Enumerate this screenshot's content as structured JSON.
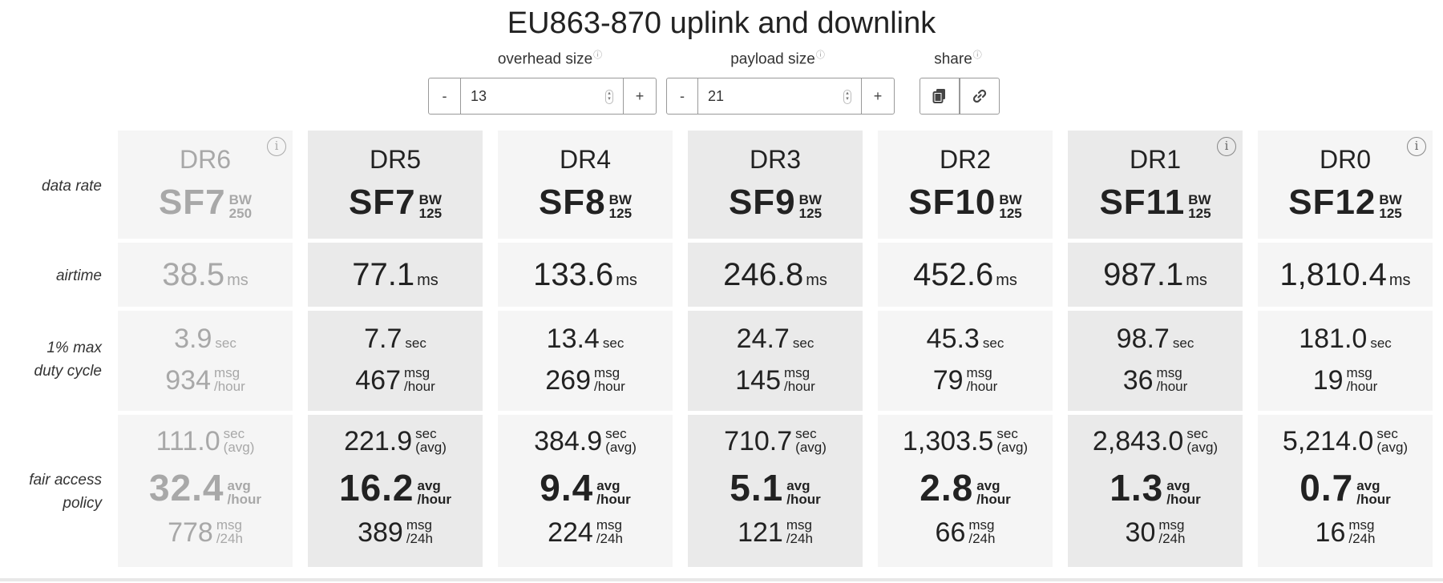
{
  "title": "EU863-870 uplink and downlink",
  "controls": {
    "overhead": {
      "label": "overhead size",
      "info": "ⓘ",
      "minus": "-",
      "plus": "+",
      "value": "13"
    },
    "payload": {
      "label": "payload size",
      "info": "ⓘ",
      "minus": "-",
      "plus": "+",
      "value": "21"
    },
    "share": {
      "label": "share",
      "info": "ⓘ",
      "copy_icon": "copy-icon",
      "link_icon": "link-icon"
    }
  },
  "row_labels": {
    "data_rate": "data rate",
    "airtime": "airtime",
    "duty_cycle_1": "1% max",
    "duty_cycle_2": "duty cycle",
    "fair_access_1": "fair access",
    "fair_access_2": "policy"
  },
  "units": {
    "bw": "BW",
    "ms": "ms",
    "sec": "sec",
    "msg": "msg",
    "per_hour": "/hour",
    "per_24h": "/24h",
    "avg": "avg",
    "avg_paren": "(avg)",
    "info_glyph": "i"
  },
  "columns": [
    {
      "dr": "DR6",
      "sf": "SF7",
      "bw": "250",
      "airtime": "38.5",
      "duty_sec": "3.9",
      "duty_msg": "934",
      "fair_sec": "111.0",
      "fair_avg": "32.4",
      "fair_msg": "778",
      "dim": true,
      "info": true
    },
    {
      "dr": "DR5",
      "sf": "SF7",
      "bw": "125",
      "airtime": "77.1",
      "duty_sec": "7.7",
      "duty_msg": "467",
      "fair_sec": "221.9",
      "fair_avg": "16.2",
      "fair_msg": "389",
      "dim": false,
      "info": false
    },
    {
      "dr": "DR4",
      "sf": "SF8",
      "bw": "125",
      "airtime": "133.6",
      "duty_sec": "13.4",
      "duty_msg": "269",
      "fair_sec": "384.9",
      "fair_avg": "9.4",
      "fair_msg": "224",
      "dim": false,
      "info": false
    },
    {
      "dr": "DR3",
      "sf": "SF9",
      "bw": "125",
      "airtime": "246.8",
      "duty_sec": "24.7",
      "duty_msg": "145",
      "fair_sec": "710.7",
      "fair_avg": "5.1",
      "fair_msg": "121",
      "dim": false,
      "info": false
    },
    {
      "dr": "DR2",
      "sf": "SF10",
      "bw": "125",
      "airtime": "452.6",
      "duty_sec": "45.3",
      "duty_msg": "79",
      "fair_sec": "1,303.5",
      "fair_avg": "2.8",
      "fair_msg": "66",
      "dim": false,
      "info": false
    },
    {
      "dr": "DR1",
      "sf": "SF11",
      "bw": "125",
      "airtime": "987.1",
      "duty_sec": "98.7",
      "duty_msg": "36",
      "fair_sec": "2,843.0",
      "fair_avg": "1.3",
      "fair_msg": "30",
      "dim": false,
      "info": true
    },
    {
      "dr": "DR0",
      "sf": "SF12",
      "bw": "125",
      "airtime": "1,810.4",
      "duty_sec": "181.0",
      "duty_msg": "19",
      "fair_sec": "5,214.0",
      "fair_avg": "0.7",
      "fair_msg": "16",
      "dim": false,
      "info": true
    }
  ],
  "colors": {
    "dim_text": "#a8a8a8",
    "cell_light": "#f5f5f5",
    "cell_dark": "#eaeaea"
  }
}
